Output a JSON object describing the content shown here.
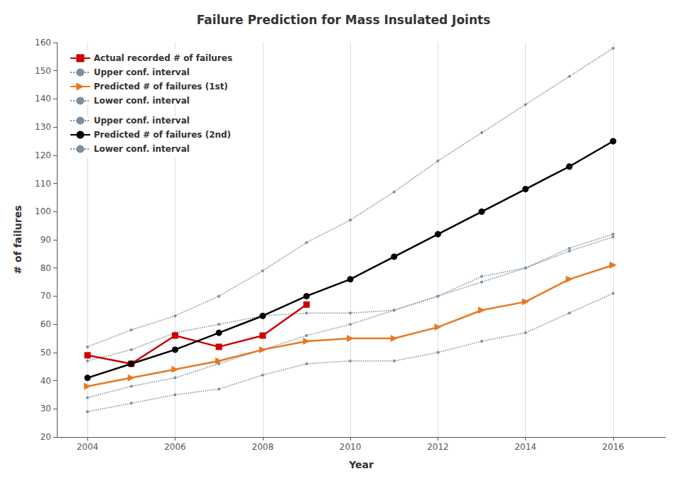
{
  "chart_data": {
    "type": "line",
    "title": "Failure Prediction for Mass Insulated Joints",
    "x_label": "Year",
    "y_label": "# of failures",
    "xlim": [
      2003.3,
      2017.2
    ],
    "xticks": [
      2004,
      2006,
      2008,
      2010,
      2012,
      2014,
      2016
    ],
    "ylim": [
      20,
      160
    ],
    "yticks": [
      20,
      30,
      40,
      50,
      60,
      70,
      80,
      90,
      100,
      110,
      120,
      130,
      140,
      150,
      160
    ],
    "grid": "x",
    "legend": "upper left",
    "series": [
      {
        "name": "Actual recorded # of failures",
        "color": "#cc0000",
        "marker": "square",
        "line_style": "solid",
        "x": [
          2004,
          2005,
          2006,
          2007,
          2008,
          2009
        ],
        "values": [
          49,
          46,
          56,
          52,
          56,
          67
        ]
      },
      {
        "name": "Upper conf. interval",
        "color": "#7a8fa0",
        "marker": "point",
        "line_style": "dotted",
        "x": [
          2004,
          2005,
          2006,
          2007,
          2008,
          2009,
          2010,
          2011,
          2012,
          2013,
          2014,
          2015,
          2016
        ],
        "values": [
          47,
          51,
          57,
          60,
          63,
          64,
          64,
          65,
          70,
          77,
          80,
          87,
          92
        ]
      },
      {
        "name": "Predicted # of failures (1st)",
        "color": "#e87820",
        "marker": "triangle-right",
        "line_style": "solid",
        "x": [
          2004,
          2005,
          2006,
          2007,
          2008,
          2009,
          2010,
          2011,
          2012,
          2013,
          2014,
          2015,
          2016
        ],
        "values": [
          38,
          41,
          44,
          47,
          51,
          54,
          55,
          55,
          59,
          65,
          68,
          76,
          81
        ]
      },
      {
        "name": "Lower conf. interval",
        "color": "#7a8fa0",
        "marker": "point",
        "line_style": "dotted",
        "x": [
          2004,
          2005,
          2006,
          2007,
          2008,
          2009,
          2010,
          2011,
          2012,
          2013,
          2014,
          2015,
          2016
        ],
        "values": [
          29,
          32,
          35,
          37,
          42,
          46,
          47,
          47,
          50,
          54,
          57,
          64,
          71
        ]
      },
      {
        "name": "Upper conf. interval",
        "color": "#7a8fa0",
        "marker": "point",
        "line_style": "dotted",
        "x": [
          2004,
          2005,
          2006,
          2007,
          2008,
          2009,
          2010,
          2011,
          2012,
          2013,
          2014,
          2015,
          2016
        ],
        "values": [
          52,
          58,
          63,
          70,
          79,
          89,
          97,
          107,
          118,
          128,
          138,
          148,
          158
        ]
      },
      {
        "name": "Predicted # of failures (2nd)",
        "color": "#000000",
        "marker": "circle",
        "line_style": "solid",
        "x": [
          2004,
          2005,
          2006,
          2007,
          2008,
          2009,
          2010,
          2011,
          2012,
          2013,
          2014,
          2015,
          2016
        ],
        "values": [
          41,
          46,
          51,
          57,
          63,
          70,
          76,
          84,
          92,
          100,
          108,
          116,
          125
        ]
      },
      {
        "name": "Lower conf. interval",
        "color": "#7a8fa0",
        "marker": "point",
        "line_style": "dotted",
        "x": [
          2004,
          2005,
          2006,
          2007,
          2008,
          2009,
          2010,
          2011,
          2012,
          2013,
          2014,
          2015,
          2016
        ],
        "values": [
          34,
          38,
          41,
          46,
          51,
          56,
          60,
          65,
          70,
          75,
          80,
          86,
          91
        ]
      }
    ]
  }
}
